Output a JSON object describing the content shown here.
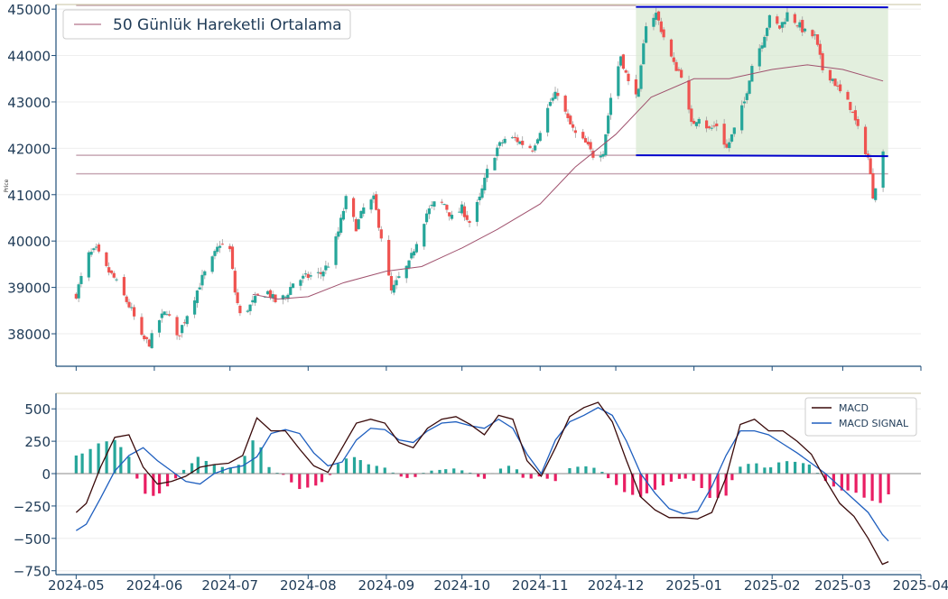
{
  "colors": {
    "up": "#26a69a",
    "down": "#ef5350",
    "ma": "#a0526e",
    "channel": "#0000cc",
    "channel_fill": "#d9ead3",
    "macd": "#3a0a0a",
    "signal": "#1f5fbf",
    "hist_pos": "#26a69a",
    "hist_neg": "#e91e63",
    "axis": "#1f4e79",
    "tick_text": "#1f3b57"
  },
  "chart_data": [
    {
      "type": "candlestick",
      "ylabel": "Price",
      "ylim": [
        37300,
        45100
      ],
      "yticks": [
        38000,
        39000,
        40000,
        41000,
        42000,
        43000,
        44000,
        45000
      ],
      "legend": {
        "position": "top-left",
        "entries": [
          "50 Günlük Hareketli Ortalama"
        ]
      },
      "x_start": "2024-05-01",
      "x_end": "2025-03-17",
      "x_range": [
        "2024-04-23",
        "2025-04-01"
      ],
      "close_anchors": [
        [
          "2024-05-01",
          38850
        ],
        [
          "2024-05-03",
          39200
        ],
        [
          "2024-05-06",
          39700
        ],
        [
          "2024-05-09",
          39800
        ],
        [
          "2024-05-13",
          39400
        ],
        [
          "2024-05-16",
          39200
        ],
        [
          "2024-05-20",
          38800
        ],
        [
          "2024-05-23",
          38500
        ],
        [
          "2024-05-27",
          37900
        ],
        [
          "2024-05-30",
          37800
        ],
        [
          "2024-06-03",
          38300
        ],
        [
          "2024-06-06",
          38500
        ],
        [
          "2024-06-10",
          37900
        ],
        [
          "2024-06-13",
          38300
        ],
        [
          "2024-06-17",
          38800
        ],
        [
          "2024-06-20",
          39200
        ],
        [
          "2024-06-24",
          39600
        ],
        [
          "2024-06-27",
          39950
        ],
        [
          "2024-07-01",
          39800
        ],
        [
          "2024-07-03",
          38900
        ],
        [
          "2024-07-05",
          38400
        ],
        [
          "2024-07-09",
          38600
        ],
        [
          "2024-07-12",
          38800
        ],
        [
          "2024-07-16",
          38900
        ],
        [
          "2024-07-19",
          38700
        ],
        [
          "2024-07-23",
          38800
        ],
        [
          "2024-07-26",
          39100
        ],
        [
          "2024-07-30",
          39200
        ],
        [
          "2024-08-02",
          39250
        ],
        [
          "2024-08-06",
          39300
        ],
        [
          "2024-08-09",
          39500
        ],
        [
          "2024-08-13",
          40200
        ],
        [
          "2024-08-16",
          40900
        ],
        [
          "2024-08-20",
          40300
        ],
        [
          "2024-08-23",
          40700
        ],
        [
          "2024-08-27",
          40900
        ],
        [
          "2024-08-30",
          40100
        ],
        [
          "2024-09-03",
          38900
        ],
        [
          "2024-09-06",
          39200
        ],
        [
          "2024-09-10",
          39500
        ],
        [
          "2024-09-13",
          40000
        ],
        [
          "2024-09-17",
          40600
        ],
        [
          "2024-09-20",
          40800
        ],
        [
          "2024-09-24",
          40800
        ],
        [
          "2024-09-27",
          40500
        ],
        [
          "2024-10-01",
          40700
        ],
        [
          "2024-10-04",
          40400
        ],
        [
          "2024-10-08",
          40900
        ],
        [
          "2024-10-11",
          41500
        ],
        [
          "2024-10-15",
          42000
        ],
        [
          "2024-10-18",
          42200
        ],
        [
          "2024-10-22",
          42200
        ],
        [
          "2024-10-25",
          42100
        ],
        [
          "2024-10-29",
          42000
        ],
        [
          "2024-11-01",
          42400
        ],
        [
          "2024-11-05",
          43000
        ],
        [
          "2024-11-08",
          43200
        ],
        [
          "2024-11-12",
          42600
        ],
        [
          "2024-11-15",
          42300
        ],
        [
          "2024-11-19",
          42100
        ],
        [
          "2024-11-22",
          41850
        ],
        [
          "2024-11-26",
          41950
        ],
        [
          "2024-11-29",
          43100
        ],
        [
          "2024-12-03",
          44000
        ],
        [
          "2024-12-06",
          43400
        ],
        [
          "2024-12-10",
          43200
        ],
        [
          "2024-12-13",
          44700
        ],
        [
          "2024-12-17",
          44900
        ],
        [
          "2024-12-20",
          44400
        ],
        [
          "2024-12-24",
          43800
        ],
        [
          "2024-12-27",
          43600
        ],
        [
          "2024-12-31",
          42500
        ],
        [
          "2025-01-03",
          42700
        ],
        [
          "2025-01-07",
          42400
        ],
        [
          "2025-01-10",
          42500
        ],
        [
          "2025-01-14",
          42000
        ],
        [
          "2025-01-17",
          42400
        ],
        [
          "2025-01-21",
          43000
        ],
        [
          "2025-01-24",
          43800
        ],
        [
          "2025-01-28",
          44300
        ],
        [
          "2025-01-31",
          44800
        ],
        [
          "2025-02-04",
          44600
        ],
        [
          "2025-02-07",
          44900
        ],
        [
          "2025-02-11",
          44700
        ],
        [
          "2025-02-14",
          44500
        ],
        [
          "2025-02-18",
          44400
        ],
        [
          "2025-02-21",
          43700
        ],
        [
          "2025-02-25",
          43500
        ],
        [
          "2025-02-28",
          43200
        ],
        [
          "2025-03-04",
          42900
        ],
        [
          "2025-03-07",
          42400
        ],
        [
          "2025-03-11",
          41800
        ],
        [
          "2025-03-13",
          41000
        ],
        [
          "2025-03-17",
          41900
        ]
      ],
      "ma50": [
        [
          "2024-07-10",
          38850
        ],
        [
          "2024-07-20",
          38750
        ],
        [
          "2024-08-01",
          38800
        ],
        [
          "2024-08-15",
          39100
        ],
        [
          "2024-09-01",
          39350
        ],
        [
          "2024-09-15",
          39450
        ],
        [
          "2024-10-01",
          39850
        ],
        [
          "2024-10-15",
          40250
        ],
        [
          "2024-11-01",
          40800
        ],
        [
          "2024-11-15",
          41600
        ],
        [
          "2024-12-01",
          42300
        ],
        [
          "2024-12-15",
          43100
        ],
        [
          "2025-01-01",
          43500
        ],
        [
          "2025-01-15",
          43500
        ],
        [
          "2025-02-01",
          43700
        ],
        [
          "2025-02-15",
          43800
        ],
        [
          "2025-03-01",
          43700
        ],
        [
          "2025-03-17",
          43450
        ]
      ],
      "channel": {
        "start": "2024-12-09",
        "end": "2025-03-19",
        "upper": [
          45050,
          45040
        ],
        "lower": [
          41850,
          41830
        ]
      },
      "hlines": [
        {
          "value": 45080,
          "start": "2024-05-01",
          "end": "2024-12-09"
        },
        {
          "value": 41850,
          "start": "2024-05-01",
          "end": "2024-12-09"
        },
        {
          "value": 41450,
          "start": "2024-05-01",
          "end": "2025-03-19"
        }
      ]
    },
    {
      "type": "line+bar",
      "ylim": [
        -780,
        620
      ],
      "yticks": [
        -750,
        -500,
        -250,
        0,
        250,
        500
      ],
      "xticks": [
        "2024-05",
        "2024-06",
        "2024-07",
        "2024-08",
        "2024-09",
        "2024-10",
        "2024-11",
        "2024-12",
        "2025-01",
        "2025-02",
        "2025-03",
        "2025-04"
      ],
      "legend": {
        "position": "top-right",
        "entries": [
          "MACD",
          "MACD SIGNAL"
        ]
      },
      "macd": [
        [
          "2024-05-01",
          -300
        ],
        [
          "2024-05-06",
          -230
        ],
        [
          "2024-05-13",
          50
        ],
        [
          "2024-05-20",
          280
        ],
        [
          "2024-05-27",
          300
        ],
        [
          "2024-06-03",
          50
        ],
        [
          "2024-06-10",
          -80
        ],
        [
          "2024-06-17",
          -60
        ],
        [
          "2024-06-24",
          -20
        ],
        [
          "2024-07-01",
          50
        ],
        [
          "2024-07-08",
          70
        ],
        [
          "2024-07-15",
          80
        ],
        [
          "2024-07-22",
          140
        ],
        [
          "2024-07-29",
          430
        ],
        [
          "2024-08-05",
          330
        ],
        [
          "2024-08-12",
          330
        ],
        [
          "2024-08-19",
          190
        ],
        [
          "2024-08-26",
          60
        ],
        [
          "2024-09-02",
          10
        ],
        [
          "2024-09-09",
          200
        ],
        [
          "2024-09-16",
          390
        ],
        [
          "2024-09-23",
          420
        ],
        [
          "2024-09-30",
          390
        ],
        [
          "2024-10-07",
          240
        ],
        [
          "2024-10-14",
          200
        ],
        [
          "2024-10-21",
          350
        ],
        [
          "2024-10-28",
          420
        ],
        [
          "2024-11-04",
          440
        ],
        [
          "2024-11-11",
          380
        ],
        [
          "2024-11-18",
          300
        ],
        [
          "2024-11-25",
          450
        ],
        [
          "2024-12-02",
          420
        ],
        [
          "2024-12-09",
          100
        ],
        [
          "2024-12-16",
          -20
        ],
        [
          "2024-12-23",
          200
        ],
        [
          "2024-12-30",
          440
        ],
        [
          "2025-01-06",
          510
        ],
        [
          "2025-01-13",
          550
        ],
        [
          "2025-01-20",
          400
        ],
        [
          "2025-01-27",
          100
        ],
        [
          "2025-02-03",
          -180
        ],
        [
          "2025-02-10",
          -280
        ],
        [
          "2025-02-17",
          -340
        ],
        [
          "2025-02-24",
          -340
        ],
        [
          "2025-03-03",
          -350
        ],
        [
          "2025-03-10",
          -300
        ],
        [
          "2025-03-17",
          -30
        ],
        [
          "2025-03-24",
          380
        ],
        [
          "2025-03-31",
          420
        ],
        [
          "2025-04-07",
          330
        ],
        [
          "2025-04-14",
          330
        ],
        [
          "2025-04-21",
          250
        ],
        [
          "2025-04-28",
          150
        ],
        [
          "2025-05-05",
          -50
        ],
        [
          "2025-05-12",
          -230
        ],
        [
          "2025-05-19",
          -330
        ],
        [
          "2025-05-26",
          -500
        ],
        [
          "2025-06-02",
          -700
        ],
        [
          "2025-06-05",
          -680
        ]
      ],
      "signal": [
        [
          "2024-05-01",
          -440
        ],
        [
          "2024-05-06",
          -390
        ],
        [
          "2024-05-13",
          -190
        ],
        [
          "2024-05-20",
          20
        ],
        [
          "2024-05-27",
          140
        ],
        [
          "2024-06-03",
          200
        ],
        [
          "2024-06-10",
          100
        ],
        [
          "2024-06-17",
          20
        ],
        [
          "2024-06-24",
          -60
        ],
        [
          "2024-07-01",
          -80
        ],
        [
          "2024-07-08",
          0
        ],
        [
          "2024-07-15",
          40
        ],
        [
          "2024-07-22",
          60
        ],
        [
          "2024-07-29",
          130
        ],
        [
          "2024-08-05",
          310
        ],
        [
          "2024-08-12",
          340
        ],
        [
          "2024-08-19",
          310
        ],
        [
          "2024-08-26",
          160
        ],
        [
          "2024-09-02",
          60
        ],
        [
          "2024-09-09",
          90
        ],
        [
          "2024-09-16",
          260
        ],
        [
          "2024-09-23",
          350
        ],
        [
          "2024-09-30",
          340
        ],
        [
          "2024-10-07",
          260
        ],
        [
          "2024-10-14",
          240
        ],
        [
          "2024-10-21",
          330
        ],
        [
          "2024-10-28",
          390
        ],
        [
          "2024-11-04",
          400
        ],
        [
          "2024-11-11",
          370
        ],
        [
          "2024-11-18",
          350
        ],
        [
          "2024-11-25",
          420
        ],
        [
          "2024-12-02",
          350
        ],
        [
          "2024-12-09",
          150
        ],
        [
          "2024-12-16",
          0
        ],
        [
          "2024-12-23",
          260
        ],
        [
          "2024-12-30",
          400
        ],
        [
          "2025-01-06",
          450
        ],
        [
          "2025-01-13",
          510
        ],
        [
          "2025-01-20",
          450
        ],
        [
          "2025-01-27",
          250
        ],
        [
          "2025-02-03",
          0
        ],
        [
          "2025-02-10",
          -150
        ],
        [
          "2025-02-17",
          -270
        ],
        [
          "2025-02-24",
          -310
        ],
        [
          "2025-03-03",
          -290
        ],
        [
          "2025-03-10",
          -100
        ],
        [
          "2025-03-17",
          140
        ],
        [
          "2025-03-24",
          330
        ],
        [
          "2025-03-31",
          330
        ],
        [
          "2025-04-07",
          300
        ],
        [
          "2025-04-14",
          230
        ],
        [
          "2025-04-21",
          160
        ],
        [
          "2025-04-28",
          80
        ],
        [
          "2025-05-05",
          0
        ],
        [
          "2025-05-12",
          -100
        ],
        [
          "2025-05-19",
          -200
        ],
        [
          "2025-05-26",
          -300
        ],
        [
          "2025-06-02",
          -470
        ],
        [
          "2025-06-05",
          -520
        ]
      ]
    }
  ]
}
